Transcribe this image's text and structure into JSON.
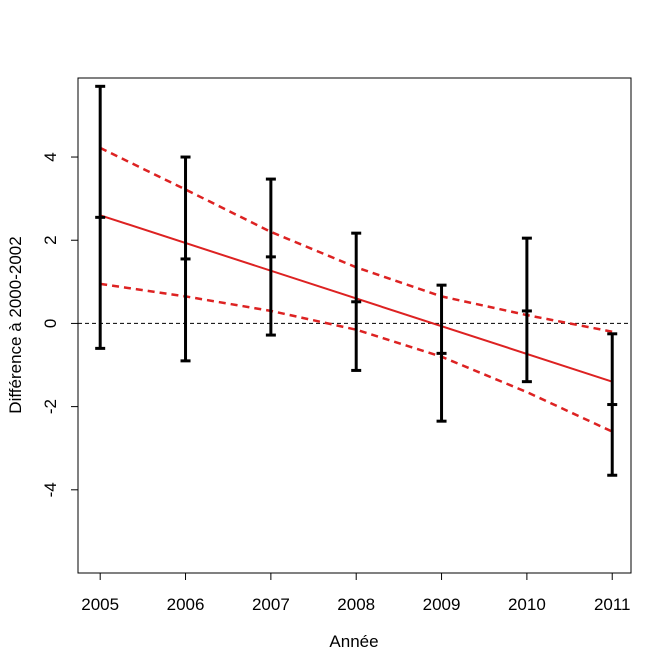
{
  "chart_data": {
    "type": "scatter",
    "title": "",
    "xlabel": "Année",
    "ylabel": "Différence à 2000-2002",
    "x": [
      2005,
      2006,
      2007,
      2008,
      2009,
      2010,
      2011
    ],
    "x_tick_labels": [
      "2005",
      "2006",
      "2007",
      "2008",
      "2009",
      "2010",
      "2011"
    ],
    "y_ticks": [
      -4,
      -2,
      0,
      2,
      4
    ],
    "y_tick_labels": [
      "-4",
      "-2",
      "0",
      "2",
      "4"
    ],
    "xlim": [
      2004.74,
      2011.22
    ],
    "ylim": [
      -6.0,
      5.9
    ],
    "grid": false,
    "series": [
      {
        "kind": "errorbar",
        "color": "#000000",
        "points": [
          {
            "x": 2005,
            "y": 2.55,
            "low": -0.6,
            "high": 5.7
          },
          {
            "x": 2006,
            "y": 1.55,
            "low": -0.9,
            "high": 4.0
          },
          {
            "x": 2007,
            "y": 1.6,
            "low": -0.28,
            "high": 3.47
          },
          {
            "x": 2008,
            "y": 0.52,
            "low": -1.13,
            "high": 2.17
          },
          {
            "x": 2009,
            "y": -0.72,
            "low": -2.35,
            "high": 0.92
          },
          {
            "x": 2010,
            "y": 0.3,
            "low": -1.4,
            "high": 2.05
          },
          {
            "x": 2011,
            "y": -1.95,
            "low": -3.65,
            "high": -0.25
          }
        ]
      },
      {
        "kind": "trend",
        "color": "#dd2222",
        "x": [
          2005,
          2011
        ],
        "y": [
          2.6,
          -1.4
        ]
      },
      {
        "kind": "ci-upper",
        "color": "#dd2222",
        "x": [
          2005,
          2006,
          2007,
          2008,
          2009,
          2010,
          2011
        ],
        "y": [
          4.22,
          3.22,
          2.2,
          1.35,
          0.65,
          0.2,
          -0.2
        ]
      },
      {
        "kind": "ci-lower",
        "color": "#dd2222",
        "x": [
          2005,
          2006,
          2007,
          2008,
          2009,
          2010,
          2011
        ],
        "y": [
          0.95,
          0.65,
          0.3,
          -0.15,
          -0.8,
          -1.65,
          -2.6
        ]
      }
    ],
    "reference_line": {
      "y": 0,
      "color": "#000000"
    }
  }
}
